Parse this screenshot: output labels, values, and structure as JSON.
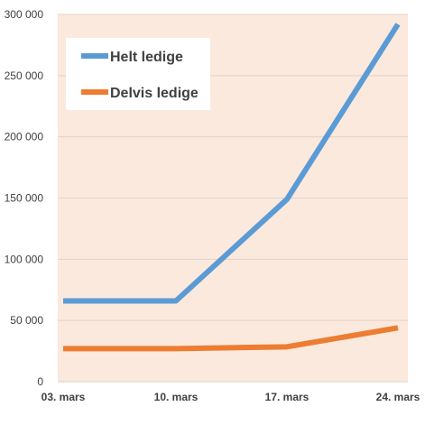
{
  "chart_data": {
    "type": "line",
    "x": [
      "03. mars",
      "10. mars",
      "17. mars",
      "24. mars"
    ],
    "series": [
      {
        "name": "Helt ledige",
        "values": [
          66000,
          66000,
          149000,
          292000
        ],
        "color": "#5b9bd5"
      },
      {
        "name": "Delvis ledige",
        "values": [
          27000,
          27000,
          28500,
          44000
        ],
        "color": "#ed7d31"
      }
    ],
    "ylim": [
      0,
      300000
    ],
    "yticks": [
      {
        "value": 0,
        "label": "0"
      },
      {
        "value": 50000,
        "label": "50 000"
      },
      {
        "value": 100000,
        "label": "100 000"
      },
      {
        "value": 150000,
        "label": "150 000"
      },
      {
        "value": 200000,
        "label": "200 000"
      },
      {
        "value": 250000,
        "label": "250 000"
      },
      {
        "value": 300000,
        "label": "300 000"
      }
    ],
    "grid": true,
    "legend_position": "top-left",
    "colors": {
      "plot_background": "#fbe9dd",
      "gridline": "#e3d2c6",
      "legend_background": "#ffffff"
    }
  }
}
